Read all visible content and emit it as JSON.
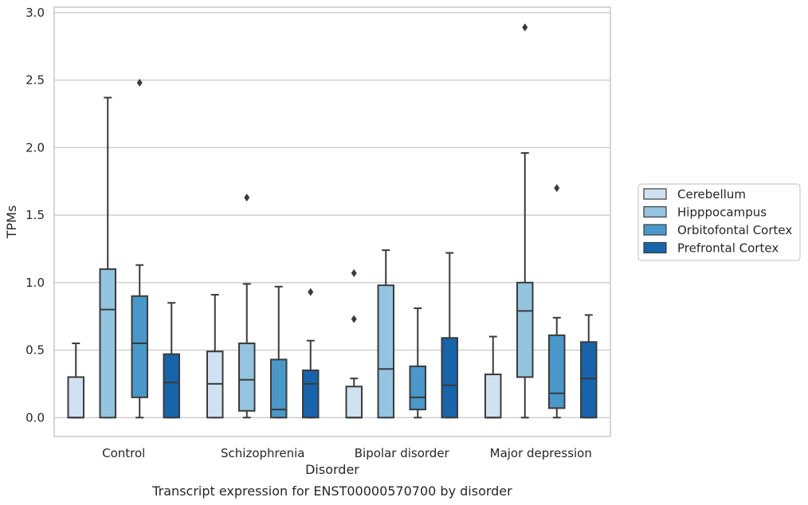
{
  "caption": "Transcript expression for ENST00000570700 by disorder",
  "chart_data": {
    "type": "boxplot",
    "xlabel": "Disorder",
    "ylabel": "TPMs",
    "ylim": [
      -0.14,
      3.04
    ],
    "yticks": [
      0.0,
      0.5,
      1.0,
      1.5,
      2.0,
      2.5,
      3.0
    ],
    "ytick_labels": [
      "0.0",
      "0.5",
      "1.0",
      "1.5",
      "2.0",
      "2.5",
      "3.0"
    ],
    "grid": "horizontal",
    "legend_position": "right",
    "categories": [
      "Control",
      "Schizophrenia",
      "Bipolar disorder",
      "Major depression"
    ],
    "series": [
      {
        "name": "Cerebellum",
        "color": "#d0e1f2",
        "boxes": [
          {
            "whislo": 0.0,
            "q1": 0.0,
            "med": 0.0,
            "q3": 0.3,
            "whishi": 0.55,
            "fliers": []
          },
          {
            "whislo": 0.0,
            "q1": 0.0,
            "med": 0.25,
            "q3": 0.49,
            "whishi": 0.91,
            "fliers": []
          },
          {
            "whislo": 0.0,
            "q1": 0.0,
            "med": 0.0,
            "q3": 0.23,
            "whishi": 0.29,
            "fliers": [
              0.73,
              1.07
            ]
          },
          {
            "whislo": 0.0,
            "q1": 0.0,
            "med": 0.0,
            "q3": 0.32,
            "whishi": 0.6,
            "fliers": []
          }
        ]
      },
      {
        "name": "Hipppocampus",
        "color": "#94c4df",
        "boxes": [
          {
            "whislo": 0.0,
            "q1": 0.0,
            "med": 0.8,
            "q3": 1.1,
            "whishi": 2.37,
            "fliers": []
          },
          {
            "whislo": 0.0,
            "q1": 0.05,
            "med": 0.28,
            "q3": 0.55,
            "whishi": 0.99,
            "fliers": [
              1.63
            ]
          },
          {
            "whislo": 0.0,
            "q1": 0.0,
            "med": 0.36,
            "q3": 0.98,
            "whishi": 1.24,
            "fliers": []
          },
          {
            "whislo": 0.0,
            "q1": 0.3,
            "med": 0.79,
            "q3": 1.0,
            "whishi": 1.96,
            "fliers": [
              2.89
            ]
          }
        ]
      },
      {
        "name": "Orbitofontal Cortex",
        "color": "#4a98c9",
        "boxes": [
          {
            "whislo": 0.0,
            "q1": 0.15,
            "med": 0.55,
            "q3": 0.9,
            "whishi": 1.13,
            "fliers": [
              2.48
            ]
          },
          {
            "whislo": 0.0,
            "q1": 0.0,
            "med": 0.06,
            "q3": 0.43,
            "whishi": 0.97,
            "fliers": []
          },
          {
            "whislo": 0.0,
            "q1": 0.06,
            "med": 0.15,
            "q3": 0.38,
            "whishi": 0.81,
            "fliers": []
          },
          {
            "whislo": 0.0,
            "q1": 0.07,
            "med": 0.18,
            "q3": 0.61,
            "whishi": 0.74,
            "fliers": [
              1.7
            ]
          }
        ]
      },
      {
        "name": "Prefrontal Cortex",
        "color": "#1764ab",
        "boxes": [
          {
            "whislo": 0.0,
            "q1": 0.0,
            "med": 0.26,
            "q3": 0.47,
            "whishi": 0.85,
            "fliers": []
          },
          {
            "whislo": 0.0,
            "q1": 0.0,
            "med": 0.25,
            "q3": 0.35,
            "whishi": 0.57,
            "fliers": [
              0.93
            ]
          },
          {
            "whislo": 0.0,
            "q1": 0.0,
            "med": 0.24,
            "q3": 0.59,
            "whishi": 1.22,
            "fliers": []
          },
          {
            "whislo": 0.0,
            "q1": 0.0,
            "med": 0.29,
            "q3": 0.56,
            "whishi": 0.76,
            "fliers": []
          }
        ]
      }
    ]
  }
}
